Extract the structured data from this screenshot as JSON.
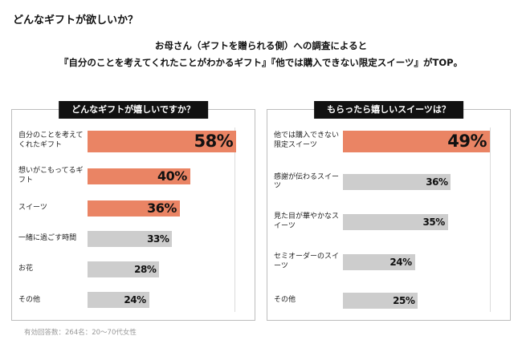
{
  "title": "どんなギフトが欲しいか？",
  "subtitle_line1": "お母さん（ギフトを贈られる側）への調査によると",
  "subtitle_line2": "『自分のことを考えてくれたことがわかるギフト』『他では購入できない限定スイーツ』がTOP。",
  "footnote": "有効回答数：264名：20～70代女性",
  "colors": {
    "highlight": "#ea8464",
    "muted": "#cdcdcd",
    "badge_bg": "#111111",
    "badge_text": "#ffffff"
  },
  "chart_data": [
    {
      "type": "bar",
      "orientation": "horizontal",
      "title": "どんなギフトが嬉しいですか？",
      "xlim": [
        0,
        62
      ],
      "grid": "right-edge-line",
      "categories": [
        "自分のことを考えてくれたギフト",
        "想いがこもってるギフト",
        "スイーツ",
        "一緒に過ごす時間",
        "お花",
        "その他"
      ],
      "values": [
        58,
        40,
        36,
        33,
        28,
        24
      ],
      "value_labels": [
        "58%",
        "40%",
        "36%",
        "33%",
        "28%",
        "24%"
      ],
      "highlighted": [
        true,
        true,
        true,
        false,
        false,
        false
      ],
      "emphasis": [
        true,
        false,
        false,
        false,
        false,
        false
      ]
    },
    {
      "type": "bar",
      "orientation": "horizontal",
      "title": "もらったら嬉しいスイーツは？",
      "xlim": [
        0,
        53
      ],
      "grid": "right-edge-line",
      "categories": [
        "他では購入できない限定スイーツ",
        "感謝が伝わるスイーツ",
        "見た目が華やかなスイーツ",
        "セミオーダーのスイーツ",
        "その他"
      ],
      "values": [
        49,
        36,
        35,
        24,
        25
      ],
      "value_labels": [
        "49%",
        "36%",
        "35%",
        "24%",
        "25%"
      ],
      "highlighted": [
        true,
        false,
        false,
        false,
        false
      ],
      "emphasis": [
        true,
        false,
        false,
        false,
        false
      ]
    }
  ]
}
